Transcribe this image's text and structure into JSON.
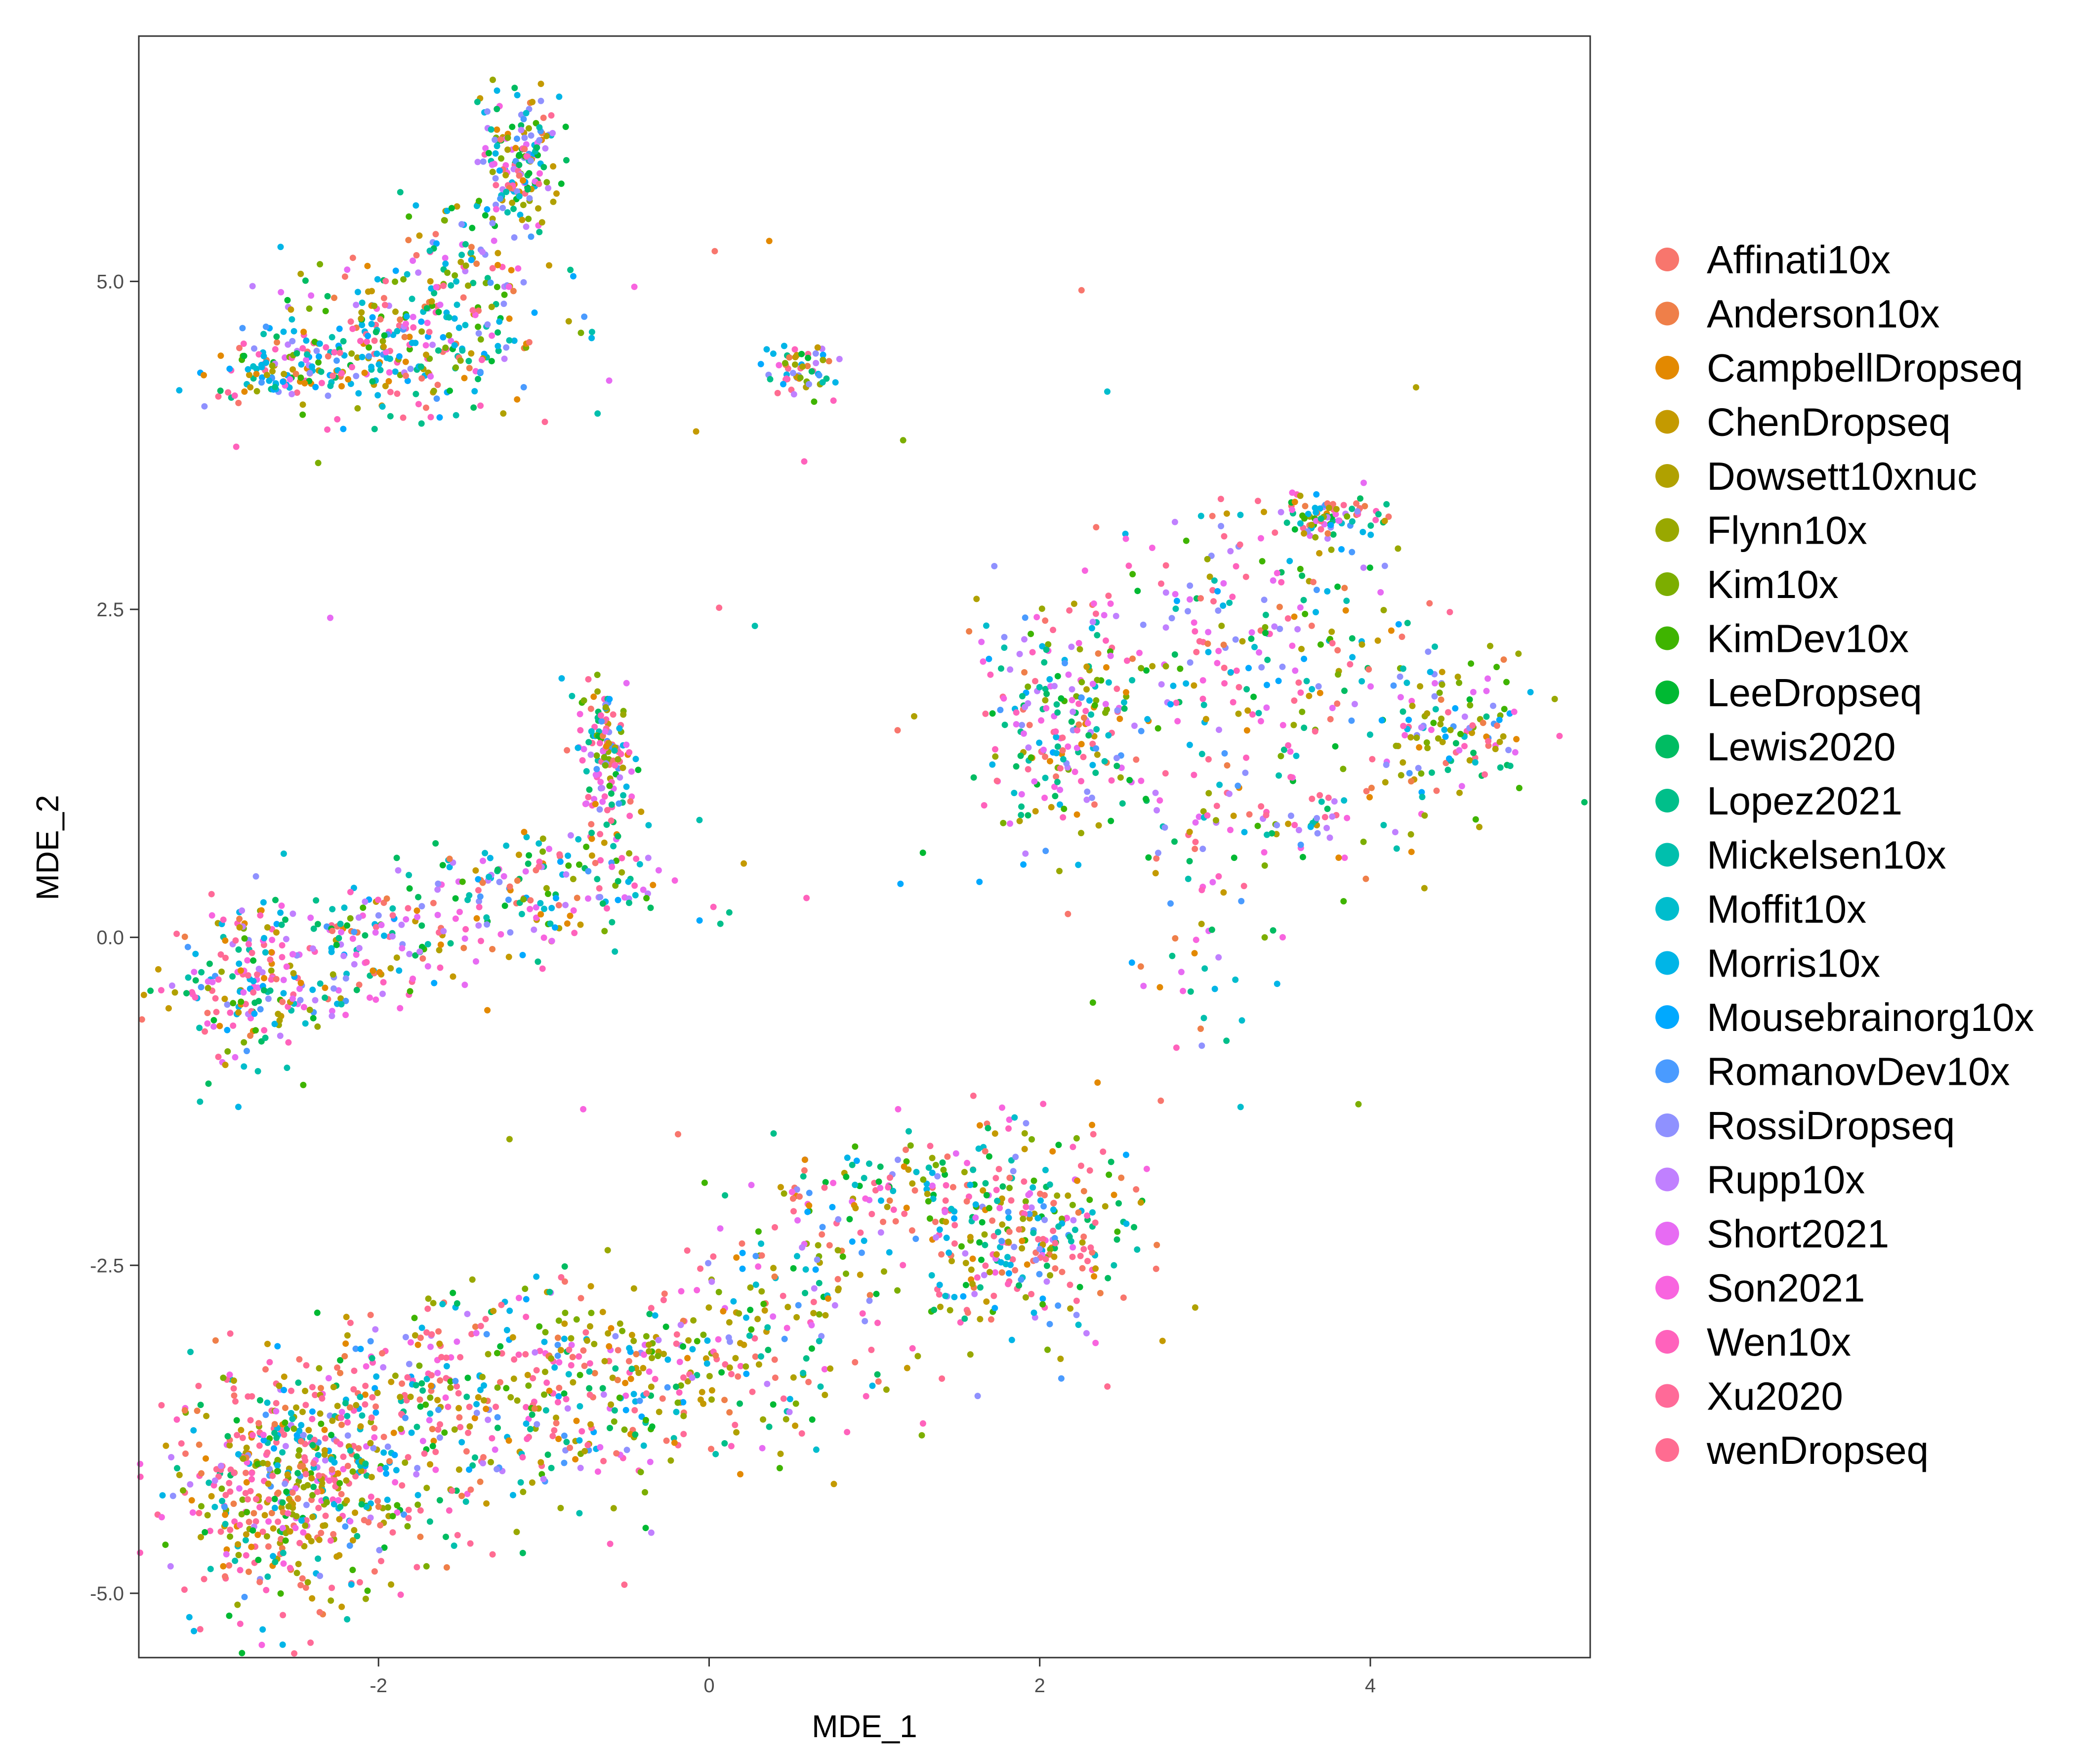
{
  "chart_data": {
    "type": "scatter",
    "title": "",
    "xlabel": "MDE_1",
    "ylabel": "MDE_2",
    "xlim": [
      -3.45,
      5.33
    ],
    "ylim": [
      -5.49,
      6.87
    ],
    "x_ticks": [
      -2,
      0,
      2,
      4
    ],
    "x_tick_labels": [
      "-2",
      "0",
      "2",
      "4"
    ],
    "y_ticks": [
      -5.0,
      -2.5,
      0.0,
      2.5,
      5.0
    ],
    "y_tick_labels": [
      "-5.0",
      "-2.5",
      "0.0",
      "2.5",
      "5.0"
    ],
    "grid": false,
    "legend_position": "right",
    "series": [
      {
        "name": "Affinati10x",
        "color": "#F8766D"
      },
      {
        "name": "Anderson10x",
        "color": "#EF7F49"
      },
      {
        "name": "CampbellDropseq",
        "color": "#E38900"
      },
      {
        "name": "ChenDropseq",
        "color": "#C49A00"
      },
      {
        "name": "Dowsett10xnuc",
        "color": "#B0A100"
      },
      {
        "name": "Flynn10x",
        "color": "#99A800"
      },
      {
        "name": "Kim10x",
        "color": "#7CAE00"
      },
      {
        "name": "KimDev10x",
        "color": "#3FB400"
      },
      {
        "name": "LeeDropseq",
        "color": "#00B933"
      },
      {
        "name": "Lewis2020",
        "color": "#00BC62"
      },
      {
        "name": "Lopez2021",
        "color": "#00BF8A"
      },
      {
        "name": "Mickelsen10x",
        "color": "#00BFAD"
      },
      {
        "name": "Moffit10x",
        "color": "#00BDCD"
      },
      {
        "name": "Morris10x",
        "color": "#00B5E7"
      },
      {
        "name": "Mousebrainorg10x",
        "color": "#00A9FF"
      },
      {
        "name": "RomanovDev10x",
        "color": "#4A9BFF"
      },
      {
        "name": "RossiDropseq",
        "color": "#8F91FF"
      },
      {
        "name": "Rupp10x",
        "color": "#C080FF"
      },
      {
        "name": "Short2021",
        "color": "#E76BF3"
      },
      {
        "name": "Son2021",
        "color": "#F864DF"
      },
      {
        "name": "Wen10x",
        "color": "#FF62BC"
      },
      {
        "name": "Xu2020",
        "color": "#FF6A98"
      },
      {
        "name": "wenDropseq",
        "color": "#FF6C91"
      }
    ],
    "clusters": [
      {
        "cx": -1.9,
        "cy": 4.55,
        "sx": 0.45,
        "sy": 0.28,
        "n": 340,
        "weights": [
          1,
          1,
          1,
          1,
          1,
          1,
          1,
          1,
          1,
          1,
          1,
          1,
          1,
          3,
          2,
          1,
          1,
          1,
          1,
          1,
          2,
          1,
          1
        ]
      },
      {
        "cx": -2.6,
        "cy": 4.3,
        "sx": 0.25,
        "sy": 0.1,
        "n": 90,
        "weights": [
          1,
          1,
          1,
          1,
          2,
          1,
          1,
          1,
          1,
          1,
          1,
          1,
          1,
          3,
          2,
          1,
          1,
          1,
          1,
          1,
          2,
          1,
          1
        ]
      },
      {
        "cx": -1.15,
        "cy": 5.9,
        "sx": 0.12,
        "sy": 0.25,
        "n": 170,
        "weights": [
          1,
          1,
          1,
          2,
          2,
          1,
          1,
          1,
          2,
          2,
          1,
          1,
          1,
          2,
          1,
          1,
          3,
          2,
          1,
          1,
          1,
          1,
          1
        ]
      },
      {
        "cx": -1.5,
        "cy": 5.2,
        "sx": 0.22,
        "sy": 0.25,
        "n": 70,
        "weights": [
          1,
          1,
          1,
          2,
          1,
          1,
          1,
          1,
          1,
          1,
          1,
          1,
          1,
          2,
          1,
          1,
          1,
          1,
          1,
          1,
          1,
          1,
          1
        ]
      },
      {
        "cx": 0.55,
        "cy": 4.33,
        "sx": 0.1,
        "sy": 0.11,
        "n": 60,
        "weights": [
          1,
          1,
          1,
          1,
          1,
          1,
          1,
          1,
          1,
          1,
          1,
          1,
          1,
          3,
          2,
          1,
          2,
          1,
          1,
          1,
          1,
          1,
          1
        ]
      },
      {
        "cx": -0.62,
        "cy": 1.3,
        "sx": 0.08,
        "sy": 0.32,
        "n": 150,
        "weights": [
          1,
          1,
          1,
          1,
          1,
          1,
          1,
          1,
          1,
          1,
          2,
          1,
          1,
          2,
          1,
          1,
          1,
          1,
          2,
          2,
          3,
          2,
          1
        ]
      },
      {
        "cx": -1.1,
        "cy": 0.35,
        "sx": 0.45,
        "sy": 0.22,
        "n": 170,
        "weights": [
          1,
          1,
          1,
          1,
          1,
          1,
          1,
          1,
          1,
          2,
          2,
          1,
          2,
          2,
          1,
          1,
          1,
          2,
          2,
          2,
          2,
          1,
          1
        ]
      },
      {
        "cx": -2.75,
        "cy": -0.35,
        "sx": 0.28,
        "sy": 0.3,
        "n": 220,
        "weights": [
          1,
          1,
          1,
          1,
          1,
          1,
          1,
          1,
          1,
          1,
          1,
          1,
          1,
          3,
          1,
          1,
          2,
          2,
          3,
          2,
          3,
          2,
          1
        ]
      },
      {
        "cx": -2.0,
        "cy": -0.05,
        "sx": 0.35,
        "sy": 0.25,
        "n": 120,
        "weights": [
          1,
          1,
          1,
          1,
          1,
          1,
          1,
          1,
          1,
          1,
          1,
          1,
          1,
          2,
          1,
          1,
          2,
          2,
          3,
          2,
          2,
          1,
          1
        ]
      },
      {
        "cx": 2.15,
        "cy": 1.7,
        "sx": 0.28,
        "sy": 0.45,
        "n": 240,
        "weights": [
          1,
          1,
          1,
          1,
          1,
          1,
          1,
          1,
          1,
          1,
          2,
          1,
          1,
          2,
          1,
          1,
          2,
          2,
          2,
          2,
          2,
          1,
          1
        ]
      },
      {
        "cx": 3.3,
        "cy": 2.2,
        "sx": 0.45,
        "sy": 0.55,
        "n": 250,
        "weights": [
          1,
          1,
          1,
          1,
          1,
          1,
          1,
          1,
          1,
          1,
          1,
          1,
          1,
          2,
          1,
          1,
          2,
          2,
          3,
          2,
          2,
          1,
          1
        ]
      },
      {
        "cx": 3.75,
        "cy": 3.2,
        "sx": 0.15,
        "sy": 0.08,
        "n": 80,
        "weights": [
          1,
          1,
          1,
          1,
          1,
          1,
          1,
          1,
          1,
          2,
          2,
          1,
          1,
          1,
          1,
          1,
          2,
          1,
          1,
          1,
          1,
          1,
          1
        ]
      },
      {
        "cx": 4.5,
        "cy": 1.6,
        "sx": 0.25,
        "sy": 0.25,
        "n": 130,
        "weights": [
          1,
          1,
          1,
          2,
          3,
          2,
          1,
          1,
          1,
          1,
          1,
          1,
          1,
          2,
          1,
          1,
          2,
          1,
          1,
          1,
          1,
          1,
          1
        ]
      },
      {
        "cx": 3.5,
        "cy": 0.9,
        "sx": 0.55,
        "sy": 0.2,
        "n": 90,
        "weights": [
          1,
          1,
          1,
          1,
          1,
          1,
          1,
          1,
          1,
          1,
          1,
          1,
          1,
          1,
          1,
          1,
          2,
          2,
          2,
          2,
          2,
          1,
          1
        ]
      },
      {
        "cx": 2.95,
        "cy": -0.1,
        "sx": 0.22,
        "sy": 0.45,
        "n": 40,
        "weights": [
          1,
          1,
          1,
          1,
          1,
          1,
          1,
          1,
          1,
          1,
          1,
          1,
          1,
          2,
          1,
          1,
          1,
          1,
          1,
          1,
          1,
          1,
          1
        ]
      },
      {
        "cx": 1.85,
        "cy": -2.25,
        "sx": 0.38,
        "sy": 0.42,
        "n": 340,
        "weights": [
          2,
          1,
          1,
          1,
          2,
          1,
          1,
          1,
          1,
          1,
          1,
          1,
          1,
          2,
          1,
          1,
          1,
          1,
          1,
          1,
          2,
          2,
          2
        ]
      },
      {
        "cx": 0.9,
        "cy": -1.95,
        "sx": 0.4,
        "sy": 0.18,
        "n": 90,
        "weights": [
          2,
          1,
          1,
          1,
          1,
          1,
          1,
          1,
          1,
          1,
          1,
          1,
          1,
          2,
          1,
          1,
          1,
          1,
          1,
          1,
          1,
          1,
          1
        ]
      },
      {
        "cx": -0.2,
        "cy": -3.3,
        "sx": 0.65,
        "sy": 0.35,
        "n": 300,
        "weights": [
          2,
          1,
          1,
          2,
          2,
          2,
          2,
          1,
          1,
          1,
          1,
          1,
          1,
          2,
          1,
          1,
          1,
          1,
          1,
          1,
          2,
          2,
          2
        ]
      },
      {
        "cx": -1.55,
        "cy": -3.65,
        "sx": 0.6,
        "sy": 0.45,
        "n": 380,
        "weights": [
          2,
          1,
          1,
          1,
          2,
          2,
          1,
          1,
          1,
          1,
          1,
          1,
          1,
          2,
          1,
          1,
          1,
          1,
          1,
          1,
          2,
          2,
          3
        ]
      },
      {
        "cx": -2.55,
        "cy": -4.2,
        "sx": 0.35,
        "sy": 0.45,
        "n": 520,
        "weights": [
          3,
          2,
          1,
          2,
          2,
          2,
          1,
          1,
          1,
          1,
          1,
          1,
          1,
          2,
          1,
          1,
          1,
          1,
          1,
          1,
          2,
          3,
          3
        ]
      },
      {
        "cx": 0.5,
        "cy": -2.6,
        "sx": 0.25,
        "sy": 0.25,
        "n": 60,
        "weights": [
          1,
          1,
          1,
          1,
          2,
          2,
          1,
          1,
          1,
          1,
          1,
          1,
          1,
          1,
          1,
          1,
          1,
          1,
          1,
          1,
          1,
          1,
          1
        ]
      },
      {
        "cx": 1.0,
        "cy": 1.0,
        "sx": 1.7,
        "sy": 2.3,
        "n": 40,
        "weights": [
          1,
          1,
          1,
          1,
          1,
          1,
          1,
          1,
          1,
          1,
          1,
          1,
          1,
          1,
          1,
          1,
          1,
          1,
          1,
          1,
          1,
          1,
          1
        ]
      }
    ]
  }
}
